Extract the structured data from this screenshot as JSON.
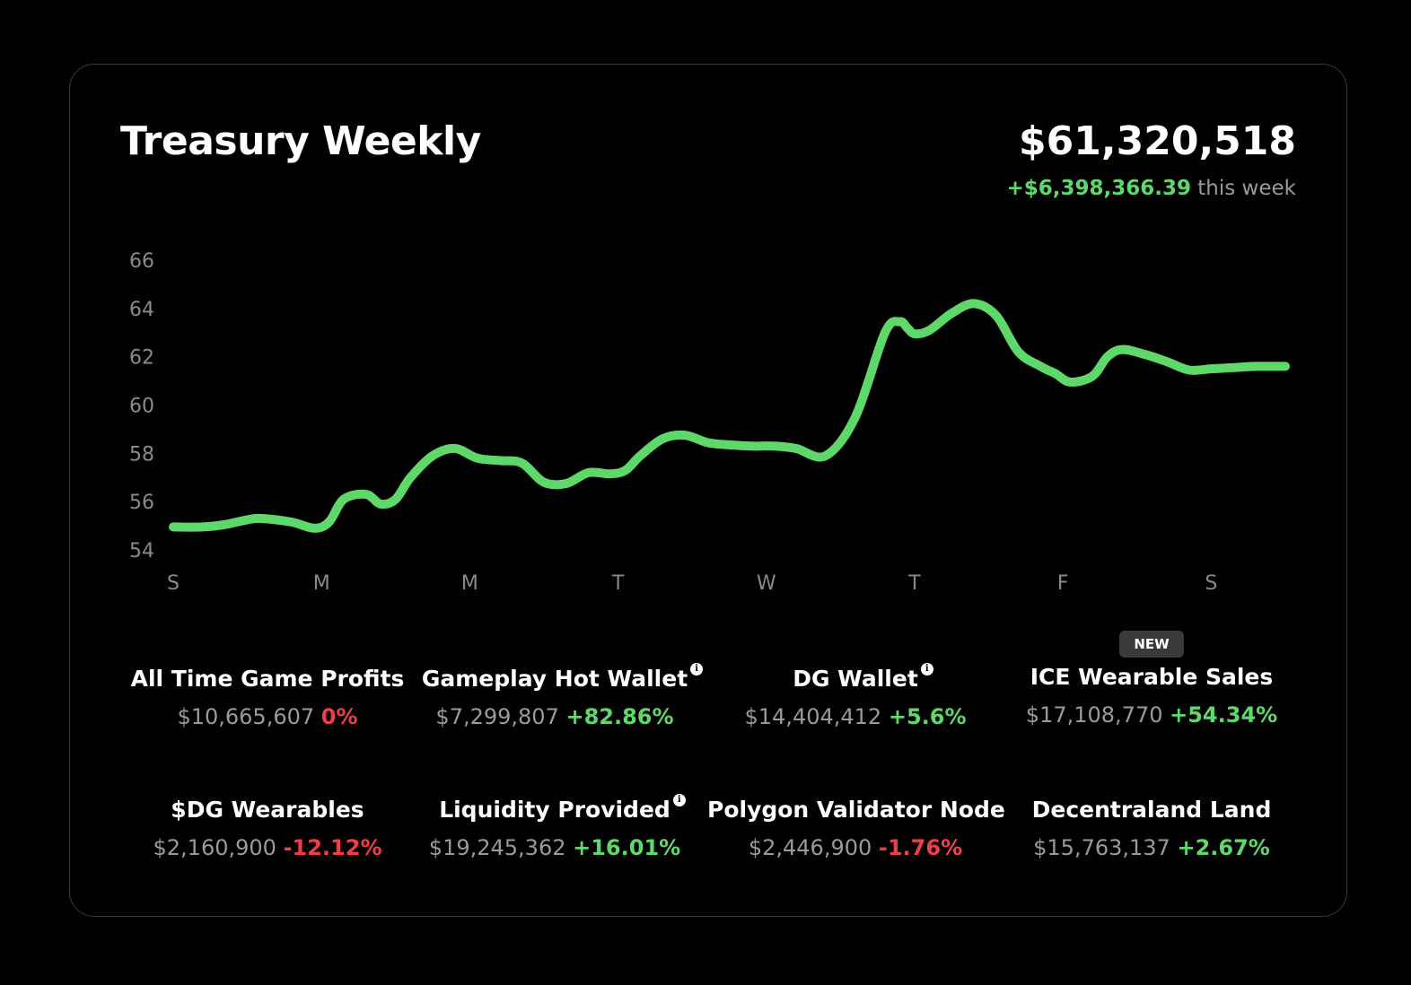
{
  "header": {
    "title": "Treasury Weekly",
    "total": "$61,320,518",
    "weekly_change": "+$6,398,366.39",
    "weekly_change_suffix": "this week"
  },
  "colors": {
    "background": "#000000",
    "card_border": "#3a3a3a",
    "positive": "#5fd86a",
    "negative": "#ef3e4a",
    "muted_text": "#9a9a9a"
  },
  "chart_data": {
    "type": "line",
    "title": "",
    "xlabel": "",
    "ylabel": "",
    "ylim": [
      54,
      66
    ],
    "y_ticks": [
      "54",
      "56",
      "58",
      "60",
      "62",
      "64",
      "66"
    ],
    "x_ticks": [
      "S",
      "M",
      "M",
      "T",
      "W",
      "T",
      "F",
      "S"
    ],
    "x_range": [
      0,
      7.5
    ],
    "grid": false,
    "legend": "none",
    "series": [
      {
        "color": "#5fd86a",
        "x": [
          0,
          0.2,
          0.35,
          0.5,
          0.6,
          0.8,
          0.95,
          1.05,
          1.15,
          1.3,
          1.4,
          1.5,
          1.6,
          1.75,
          1.9,
          2.05,
          2.2,
          2.35,
          2.5,
          2.65,
          2.8,
          2.95,
          3.05,
          3.15,
          3.3,
          3.45,
          3.6,
          3.75,
          3.9,
          4.05,
          4.2,
          4.4,
          4.6,
          4.8,
          4.9,
          4.95,
          5.0,
          5.1,
          5.25,
          5.4,
          5.55,
          5.7,
          5.85,
          5.95,
          6.05,
          6.2,
          6.3,
          6.4,
          6.55,
          6.7,
          6.85,
          7.0,
          7.15,
          7.3,
          7.5
        ],
        "values": [
          54.95,
          54.95,
          55.05,
          55.25,
          55.3,
          55.15,
          54.9,
          55.15,
          56.1,
          56.3,
          55.9,
          56.1,
          57.0,
          57.9,
          58.2,
          57.8,
          57.7,
          57.6,
          56.8,
          56.75,
          57.2,
          57.15,
          57.3,
          57.9,
          58.6,
          58.75,
          58.45,
          58.35,
          58.3,
          58.3,
          58.2,
          57.9,
          59.5,
          63.0,
          63.45,
          63.2,
          62.95,
          63.1,
          63.8,
          64.2,
          63.7,
          62.2,
          61.6,
          61.3,
          60.95,
          61.2,
          62.0,
          62.3,
          62.1,
          61.8,
          61.45,
          61.5,
          61.55,
          61.6,
          61.6
        ]
      }
    ]
  },
  "stats": [
    {
      "label": "All Time Game Profits",
      "amount": "$10,665,607",
      "pct": "0%",
      "trend": "negative",
      "info": false,
      "badge": ""
    },
    {
      "label": "Gameplay Hot Wallet",
      "amount": "$7,299,807",
      "pct": "+82.86%",
      "trend": "positive",
      "info": true,
      "badge": ""
    },
    {
      "label": "DG Wallet",
      "amount": "$14,404,412",
      "pct": "+5.6%",
      "trend": "positive",
      "info": true,
      "badge": ""
    },
    {
      "label": "ICE Wearable Sales",
      "amount": "$17,108,770",
      "pct": "+54.34%",
      "trend": "positive",
      "info": false,
      "badge": "NEW"
    },
    {
      "label": "$DG Wearables",
      "amount": "$2,160,900",
      "pct": "-12.12%",
      "trend": "negative",
      "info": false,
      "badge": ""
    },
    {
      "label": "Liquidity Provided",
      "amount": "$19,245,362",
      "pct": "+16.01%",
      "trend": "positive",
      "info": true,
      "badge": ""
    },
    {
      "label": "Polygon Validator Node",
      "amount": "$2,446,900",
      "pct": "-1.76%",
      "trend": "negative",
      "info": false,
      "badge": ""
    },
    {
      "label": "Decentraland Land",
      "amount": "$15,763,137",
      "pct": "+2.67%",
      "trend": "positive",
      "info": false,
      "badge": ""
    }
  ],
  "info_icon_glyph": "i"
}
